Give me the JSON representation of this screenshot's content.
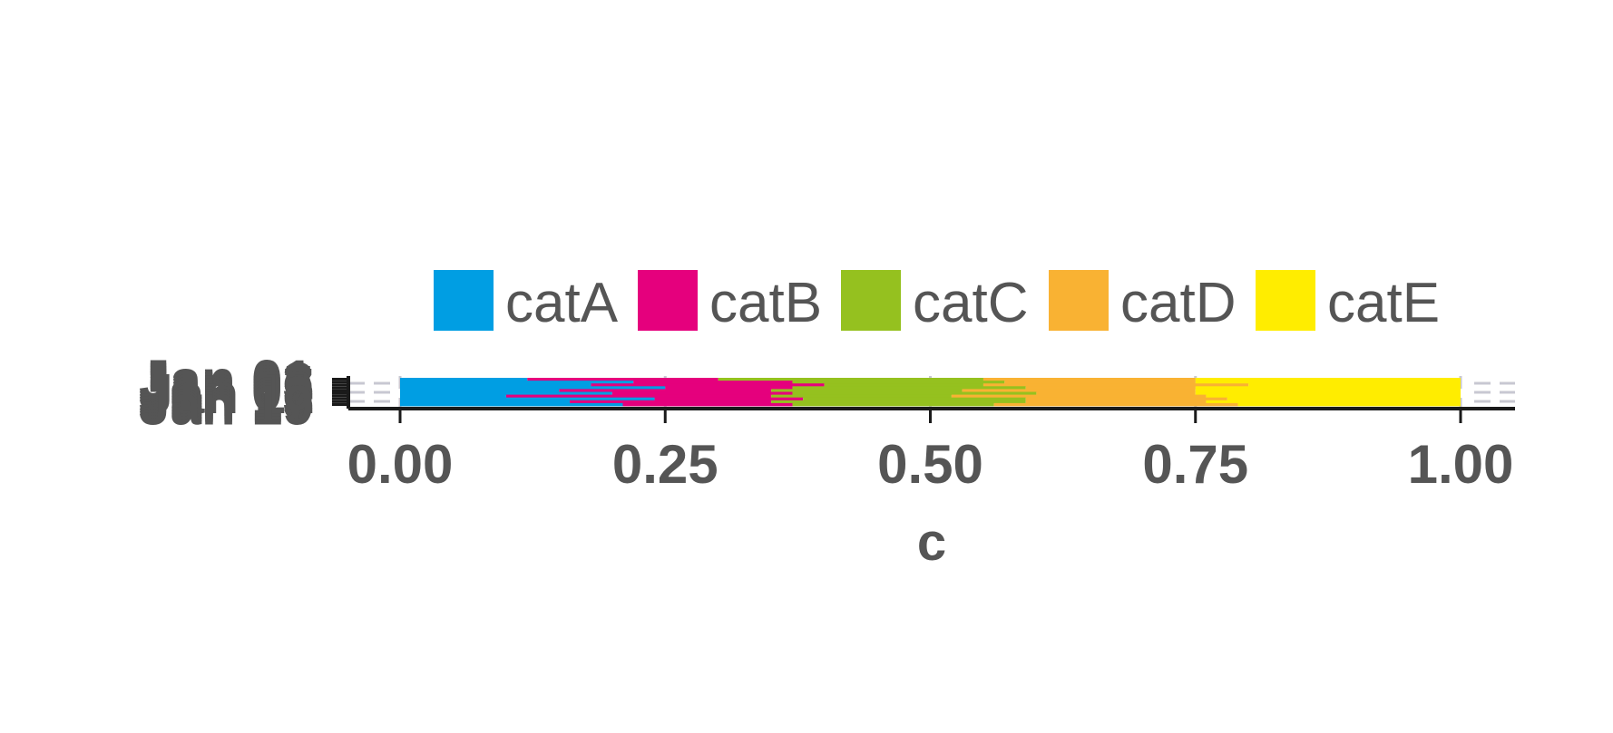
{
  "chart_data": {
    "type": "bar",
    "orientation": "horizontal",
    "stacked": "percent",
    "xlabel": "c",
    "ylabel": "",
    "xlim": [
      -0.05,
      1.05
    ],
    "xticks": [
      "0.00",
      "0.25",
      "0.50",
      "0.75",
      "1.00"
    ],
    "xtick_values": [
      0,
      0.25,
      0.5,
      0.75,
      1
    ],
    "legend_position": "top",
    "grid": "x-dashed",
    "categories": [
      "Jan 01",
      "Jan 03",
      "Jan 05",
      "Jan 07",
      "Jan 09",
      "Jan 11",
      "Jan 13",
      "Jan 15",
      "Jan 17",
      "Jan 19"
    ],
    "series": [
      {
        "name": "catA",
        "color": "#009ee3",
        "values": [
          0.12,
          0.22,
          0.18,
          0.25,
          0.15,
          0.2,
          0.1,
          0.24,
          0.16,
          0.21
        ]
      },
      {
        "name": "catB",
        "color": "#e5007d",
        "values": [
          0.18,
          0.15,
          0.22,
          0.12,
          0.2,
          0.17,
          0.25,
          0.14,
          0.19,
          0.16
        ]
      },
      {
        "name": "catC",
        "color": "#95c11f",
        "values": [
          0.25,
          0.2,
          0.15,
          0.22,
          0.18,
          0.23,
          0.17,
          0.21,
          0.24,
          0.19
        ]
      },
      {
        "name": "catD",
        "color": "#f9b233",
        "values": [
          0.2,
          0.18,
          0.25,
          0.16,
          0.22,
          0.15,
          0.24,
          0.19,
          0.17,
          0.23
        ]
      },
      {
        "name": "catE",
        "color": "#ffed00",
        "values": [
          0.25,
          0.25,
          0.2,
          0.25,
          0.25,
          0.25,
          0.24,
          0.22,
          0.24,
          0.21
        ]
      }
    ]
  }
}
